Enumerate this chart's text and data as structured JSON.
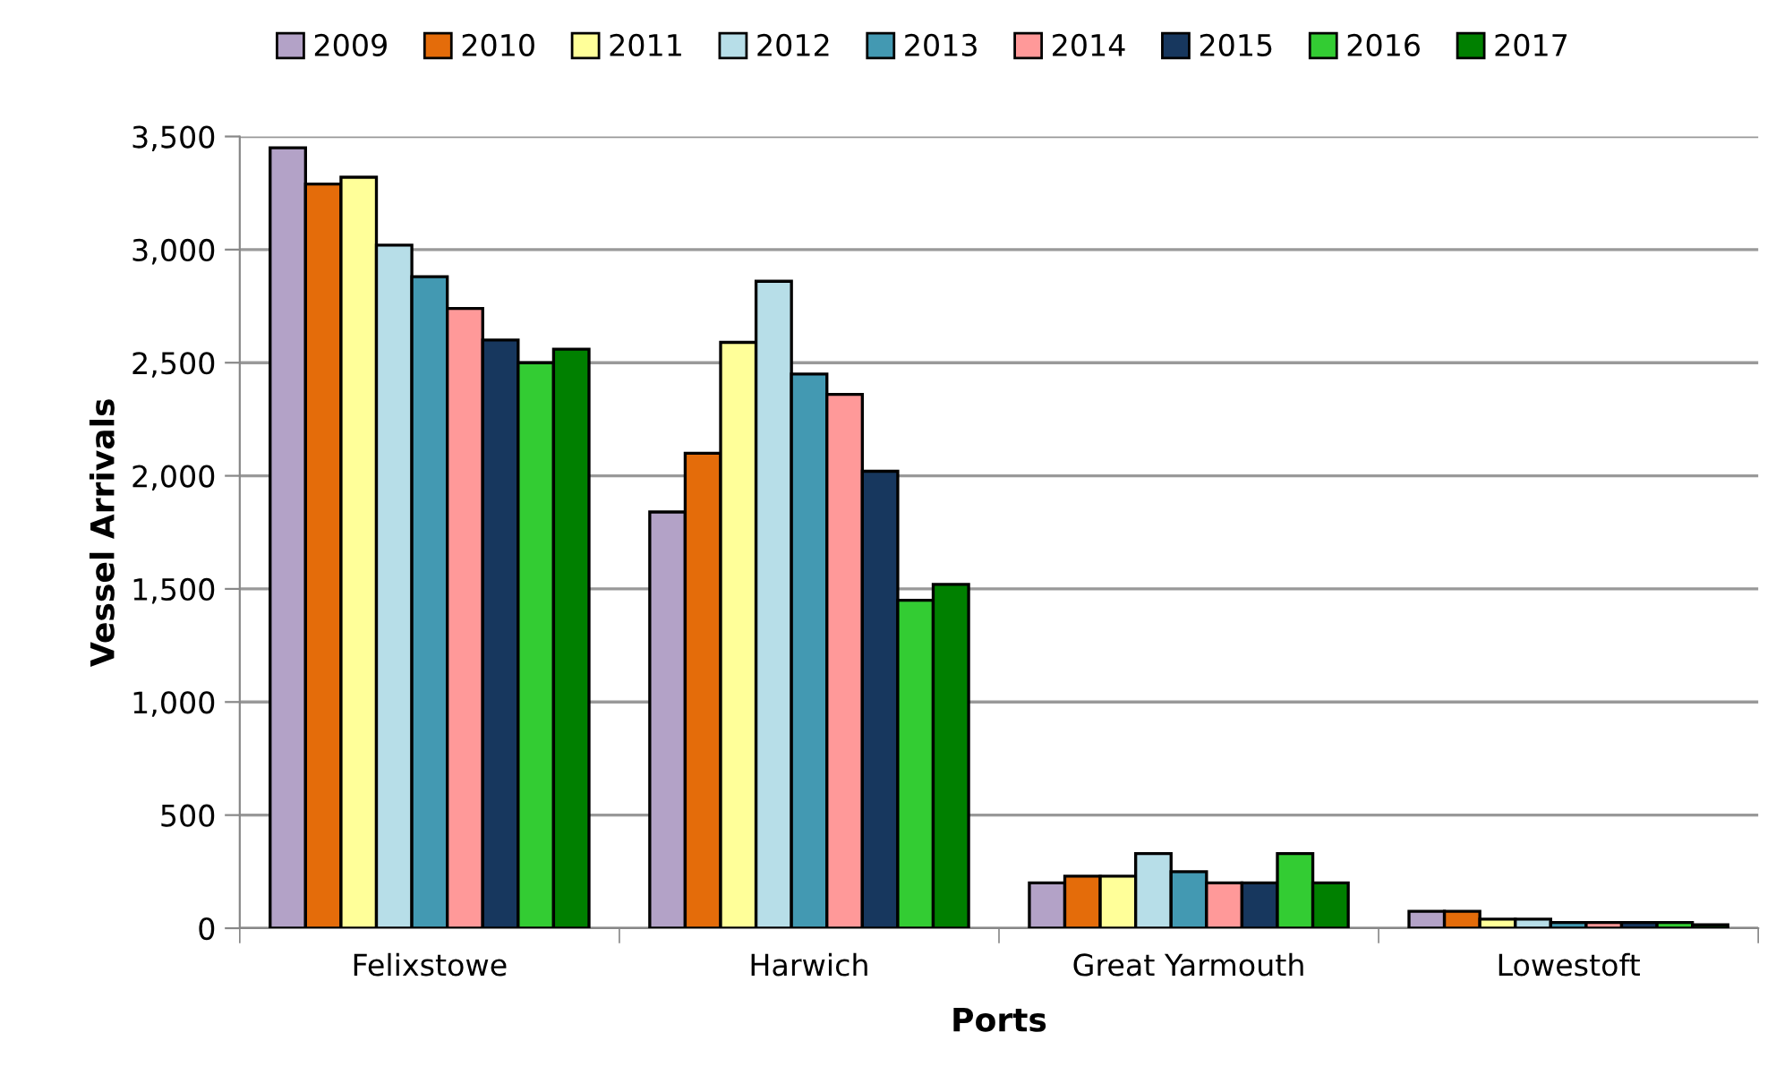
{
  "chart_data": {
    "type": "bar",
    "xlabel": "Ports",
    "ylabel": "Vessel Arrivals",
    "categories": [
      "Felixstowe",
      "Harwich",
      "Great Yarmouth",
      "Lowestoft"
    ],
    "series": [
      {
        "name": "2009",
        "color": "#b3a2c7",
        "values": [
          3450,
          1840,
          200,
          75
        ]
      },
      {
        "name": "2010",
        "color": "#e46c0a",
        "values": [
          3290,
          2100,
          230,
          75
        ]
      },
      {
        "name": "2011",
        "color": "#ffff99",
        "values": [
          3320,
          2590,
          230,
          40
        ]
      },
      {
        "name": "2012",
        "color": "#b7dee8",
        "values": [
          3020,
          2860,
          330,
          40
        ]
      },
      {
        "name": "2013",
        "color": "#4399b2",
        "values": [
          2880,
          2450,
          250,
          25
        ]
      },
      {
        "name": "2014",
        "color": "#ff9999",
        "values": [
          2740,
          2360,
          200,
          25
        ]
      },
      {
        "name": "2015",
        "color": "#17375e",
        "values": [
          2600,
          2020,
          200,
          25
        ]
      },
      {
        "name": "2016",
        "color": "#33cc33",
        "values": [
          2500,
          1450,
          330,
          25
        ]
      },
      {
        "name": "2017",
        "color": "#008000",
        "values": [
          2560,
          1520,
          200,
          15
        ]
      }
    ],
    "ylim": [
      0,
      3500
    ],
    "yticks": [
      {
        "value": 0,
        "label": "0"
      },
      {
        "value": 500,
        "label": "500"
      },
      {
        "value": 1000,
        "label": "1,000"
      },
      {
        "value": 1500,
        "label": "1,500"
      },
      {
        "value": 2000,
        "label": "2,000"
      },
      {
        "value": 2500,
        "label": "2,500"
      },
      {
        "value": 3000,
        "label": "3,000"
      },
      {
        "value": 3500,
        "label": "3,500"
      }
    ],
    "grid": "y",
    "legend": "top"
  }
}
